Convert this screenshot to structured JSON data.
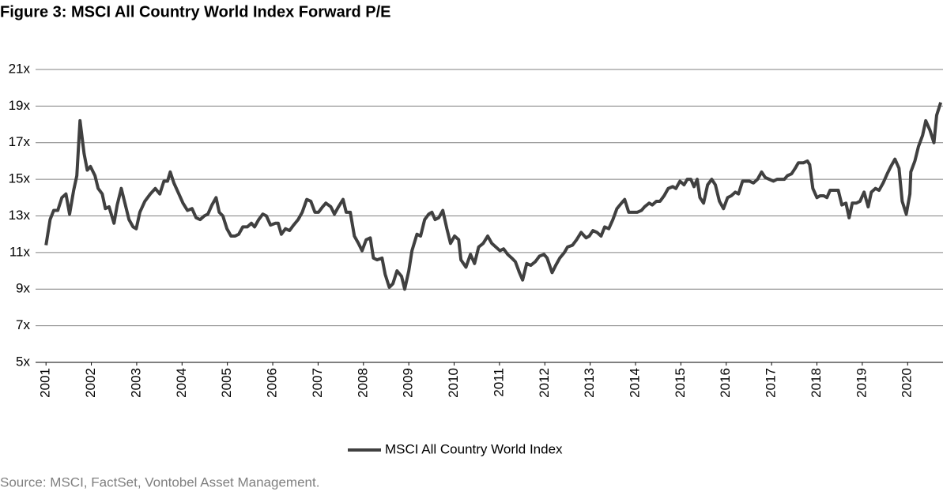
{
  "chart_data": {
    "type": "line",
    "title": "Figure 3: MSCI All Country World Index Forward P/E",
    "source": "Source: MSCI, FactSet, Vontobel Asset Management.",
    "xlim": [
      2000.77,
      2020.78
    ],
    "xticks": [
      2001,
      2002,
      2003,
      2004,
      2005,
      2006,
      2007,
      2008,
      2009,
      2010,
      2011,
      2012,
      2013,
      2014,
      2015,
      2016,
      2017,
      2018,
      2019,
      2020
    ],
    "ylim": [
      5,
      21
    ],
    "yticks": [
      {
        "value": 5,
        "label": "5x"
      },
      {
        "value": 7,
        "label": "7x"
      },
      {
        "value": 9,
        "label": "9x"
      },
      {
        "value": 11,
        "label": "11x"
      },
      {
        "value": 13,
        "label": "13x"
      },
      {
        "value": 15,
        "label": "15x"
      },
      {
        "value": 17,
        "label": "17x"
      },
      {
        "value": 19,
        "label": "19x"
      },
      {
        "value": 21,
        "label": "21x"
      }
    ],
    "grid": true,
    "legend": "bottom",
    "x": [
      2001.0,
      2001.09,
      2001.17,
      2001.26,
      2001.35,
      2001.44,
      2001.52,
      2001.61,
      2001.68,
      2001.75,
      2001.84,
      2001.91,
      2001.98,
      2002.08,
      2002.15,
      2002.24,
      2002.31,
      2002.39,
      2002.5,
      2002.57,
      2002.66,
      2002.74,
      2002.83,
      2002.92,
      2002.99,
      2003.07,
      2003.18,
      2003.3,
      2003.41,
      2003.51,
      2003.6,
      2003.68,
      2003.74,
      2003.82,
      2003.93,
      2004.02,
      2004.12,
      2004.22,
      2004.31,
      2004.4,
      2004.49,
      2004.57,
      2004.66,
      2004.75,
      2004.82,
      2004.9,
      2004.99,
      2005.08,
      2005.17,
      2005.25,
      2005.34,
      2005.44,
      2005.53,
      2005.6,
      2005.69,
      2005.78,
      2005.86,
      2005.95,
      2006.06,
      2006.12,
      2006.19,
      2006.28,
      2006.37,
      2006.46,
      2006.56,
      2006.65,
      2006.75,
      2006.84,
      2006.93,
      2007.01,
      2007.1,
      2007.17,
      2007.28,
      2007.36,
      2007.45,
      2007.55,
      2007.62,
      2007.71,
      2007.8,
      2007.89,
      2007.97,
      2008.06,
      2008.15,
      2008.22,
      2008.3,
      2008.41,
      2008.48,
      2008.57,
      2008.65,
      2008.74,
      2008.84,
      2008.91,
      2009.0,
      2009.07,
      2009.18,
      2009.26,
      2009.35,
      2009.44,
      2009.51,
      2009.58,
      2009.66,
      2009.75,
      2009.84,
      2009.92,
      2010.01,
      2010.1,
      2010.15,
      2010.26,
      2010.36,
      2010.45,
      2010.54,
      2010.64,
      2010.74,
      2010.83,
      2010.92,
      2011.01,
      2011.09,
      2011.18,
      2011.27,
      2011.35,
      2011.44,
      2011.51,
      2011.6,
      2011.69,
      2011.79,
      2011.88,
      2011.98,
      2012.05,
      2012.16,
      2012.24,
      2012.33,
      2012.43,
      2012.5,
      2012.61,
      2012.7,
      2012.8,
      2012.91,
      2012.98,
      2013.06,
      2013.15,
      2013.24,
      2013.32,
      2013.41,
      2013.5,
      2013.59,
      2013.69,
      2013.76,
      2013.85,
      2013.93,
      2014.04,
      2014.13,
      2014.2,
      2014.3,
      2014.37,
      2014.46,
      2014.54,
      2014.63,
      2014.72,
      2014.82,
      2014.89,
      2014.98,
      2015.07,
      2015.14,
      2015.22,
      2015.29,
      2015.36,
      2015.42,
      2015.5,
      2015.59,
      2015.68,
      2015.76,
      2015.85,
      2015.94,
      2016.03,
      2016.11,
      2016.2,
      2016.27,
      2016.36,
      2016.43,
      2016.51,
      2016.6,
      2016.69,
      2016.78,
      2016.86,
      2016.95,
      2017.04,
      2017.12,
      2017.21,
      2017.28,
      2017.35,
      2017.44,
      2017.52,
      2017.59,
      2017.7,
      2017.79,
      2017.84,
      2017.91,
      2018.0,
      2018.07,
      2018.15,
      2018.22,
      2018.29,
      2018.38,
      2018.47,
      2018.55,
      2018.64,
      2018.71,
      2018.78,
      2018.87,
      2018.95,
      2019.04,
      2019.13,
      2019.2,
      2019.29,
      2019.37,
      2019.46,
      2019.55,
      2019.63,
      2019.72,
      2019.81,
      2019.88,
      2019.97,
      2020.05,
      2020.07,
      2020.16,
      2020.24,
      2020.33,
      2020.4,
      2020.49,
      2020.58,
      2020.64,
      2020.73
    ],
    "series": [
      {
        "name": "MSCI All Country World Index",
        "color": "#404040",
        "values": [
          11.4,
          12.8,
          13.3,
          13.3,
          14.0,
          14.2,
          13.1,
          14.4,
          15.2,
          18.2,
          16.4,
          15.5,
          15.7,
          15.2,
          14.5,
          14.2,
          13.4,
          13.5,
          12.6,
          13.6,
          14.5,
          13.7,
          12.8,
          12.4,
          12.3,
          13.2,
          13.8,
          14.2,
          14.5,
          14.2,
          14.9,
          14.9,
          15.4,
          14.8,
          14.2,
          13.7,
          13.3,
          13.4,
          12.9,
          12.8,
          13.0,
          13.1,
          13.6,
          14.0,
          13.2,
          13.0,
          12.3,
          11.9,
          11.9,
          12.0,
          12.4,
          12.4,
          12.6,
          12.4,
          12.8,
          13.1,
          13.0,
          12.5,
          12.6,
          12.6,
          12.0,
          12.3,
          12.2,
          12.5,
          12.8,
          13.2,
          13.9,
          13.8,
          13.2,
          13.2,
          13.5,
          13.7,
          13.5,
          13.1,
          13.5,
          13.9,
          13.2,
          13.2,
          11.9,
          11.5,
          11.1,
          11.7,
          11.8,
          10.7,
          10.6,
          10.7,
          9.8,
          9.1,
          9.3,
          10.0,
          9.7,
          9.0,
          10.0,
          11.1,
          12.0,
          11.9,
          12.8,
          13.1,
          13.2,
          12.8,
          12.9,
          13.3,
          12.3,
          11.5,
          11.9,
          11.7,
          10.6,
          10.2,
          10.9,
          10.4,
          11.3,
          11.5,
          11.9,
          11.5,
          11.3,
          11.1,
          11.2,
          10.9,
          10.7,
          10.5,
          9.9,
          9.5,
          10.4,
          10.3,
          10.5,
          10.8,
          10.9,
          10.7,
          9.9,
          10.3,
          10.7,
          11.0,
          11.3,
          11.4,
          11.7,
          12.1,
          11.8,
          11.9,
          12.2,
          12.1,
          11.9,
          12.4,
          12.3,
          12.8,
          13.4,
          13.7,
          13.9,
          13.2,
          13.2,
          13.2,
          13.3,
          13.5,
          13.7,
          13.6,
          13.8,
          13.8,
          14.1,
          14.5,
          14.6,
          14.5,
          14.9,
          14.7,
          15.0,
          15.0,
          14.6,
          15.0,
          14.0,
          13.7,
          14.7,
          15.0,
          14.7,
          13.8,
          13.4,
          14.0,
          14.1,
          14.3,
          14.2,
          14.9,
          14.9,
          14.9,
          14.8,
          15.0,
          15.4,
          15.1,
          15.0,
          14.9,
          15.0,
          15.0,
          15.0,
          15.2,
          15.3,
          15.6,
          15.9,
          15.9,
          16.0,
          15.8,
          14.5,
          14.0,
          14.1,
          14.1,
          14.0,
          14.4,
          14.4,
          14.4,
          13.6,
          13.7,
          12.9,
          13.7,
          13.7,
          13.8,
          14.3,
          13.5,
          14.3,
          14.5,
          14.4,
          14.8,
          15.3,
          15.7,
          16.1,
          15.6,
          13.8,
          13.1,
          14.2,
          15.4,
          16.0,
          16.8,
          17.4,
          18.2,
          17.7,
          17.0,
          18.5,
          19.2
        ]
      }
    ]
  }
}
